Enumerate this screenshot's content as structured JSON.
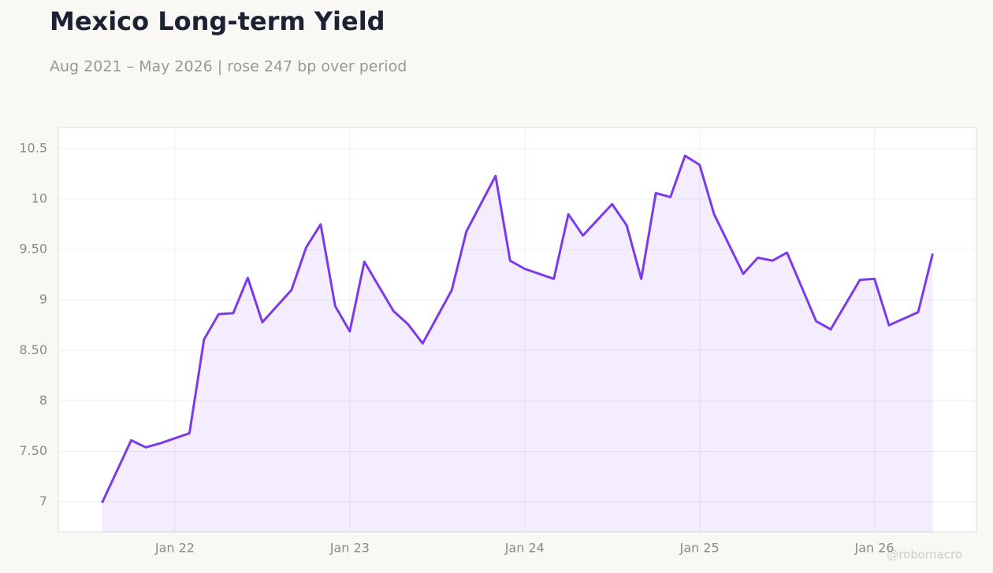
{
  "chart_data": {
    "type": "line",
    "title": "Mexico Long-term Yield",
    "subtitle": "Aug 2021 – May 2026 | rose 247 bp over period",
    "watermark": "@robomacro",
    "x": [
      "2021-08",
      "2021-10",
      "2021-11",
      "2021-12",
      "2022-02",
      "2022-03",
      "2022-04",
      "2022-05",
      "2022-06",
      "2022-07",
      "2022-09",
      "2022-10",
      "2022-11",
      "2022-12",
      "2023-01",
      "2023-02",
      "2023-04",
      "2023-05",
      "2023-06",
      "2023-08",
      "2023-09",
      "2023-11",
      "2023-12",
      "2024-01",
      "2024-03",
      "2024-04",
      "2024-05",
      "2024-07",
      "2024-08",
      "2024-09",
      "2024-10",
      "2024-11",
      "2024-12",
      "2025-01",
      "2025-02",
      "2025-04",
      "2025-05",
      "2025-06",
      "2025-07",
      "2025-09",
      "2025-10",
      "2025-12",
      "2026-01",
      "2026-02",
      "2026-04",
      "2026-05"
    ],
    "series": [
      {
        "name": "Mexico Long-term Yield",
        "color": "#7c3aed",
        "values": [
          6.99,
          7.61,
          7.54,
          7.58,
          7.68,
          8.61,
          8.86,
          8.87,
          9.22,
          8.78,
          9.1,
          9.52,
          9.75,
          8.94,
          8.69,
          9.38,
          8.89,
          8.76,
          8.57,
          9.1,
          9.68,
          10.23,
          9.39,
          9.31,
          9.21,
          9.85,
          9.64,
          9.95,
          9.74,
          9.21,
          10.06,
          10.02,
          10.43,
          10.34,
          9.85,
          9.26,
          9.42,
          9.39,
          9.47,
          8.79,
          8.71,
          9.2,
          9.21,
          8.75,
          8.88,
          9.46
        ]
      }
    ],
    "xlim": [
      "2021-05",
      "2026-08"
    ],
    "xticks": [
      {
        "value": "2022-01",
        "label": "Jan 22"
      },
      {
        "value": "2023-01",
        "label": "Jan 23"
      },
      {
        "value": "2024-01",
        "label": "Jan 24"
      },
      {
        "value": "2025-01",
        "label": "Jan 25"
      },
      {
        "value": "2026-01",
        "label": "Jan 26"
      }
    ],
    "ylim": [
      6.7,
      10.71
    ],
    "yticks": [
      7,
      {
        "value": 7.5,
        "label": "7.50"
      },
      8,
      {
        "value": 8.5,
        "label": "8.50"
      },
      9,
      {
        "value": 9.5,
        "label": "9.50"
      },
      10,
      10.5
    ],
    "grid": true
  }
}
